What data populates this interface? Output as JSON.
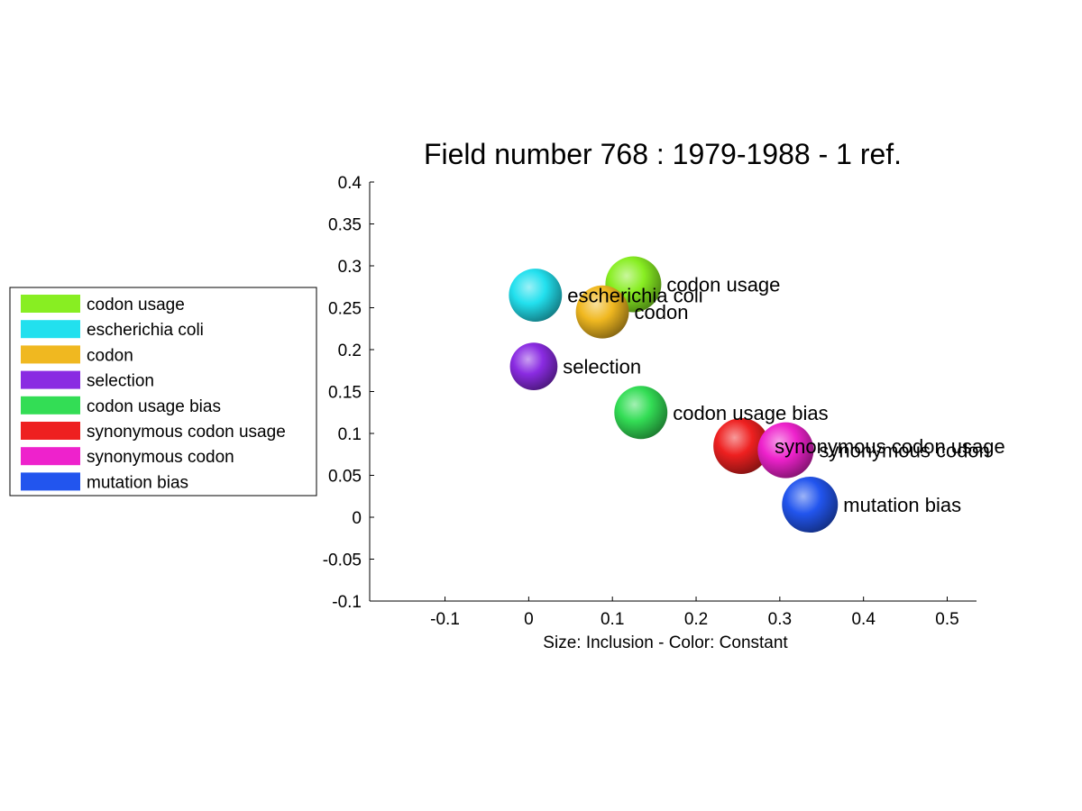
{
  "chart_data": {
    "type": "scatter",
    "title": "Field number 768 : 1979-1988  - 1 ref.",
    "xlabel": "Size: Inclusion - Color: Constant",
    "ylabel": "",
    "xlim": [
      -0.19,
      0.535
    ],
    "ylim": [
      -0.1,
      0.4
    ],
    "xticks": [
      "-0.1",
      "0",
      "0.1",
      "0.2",
      "0.3",
      "0.4",
      "0.5"
    ],
    "xtick_values": [
      -0.1,
      0,
      0.1,
      0.2,
      0.3,
      0.4,
      0.5
    ],
    "yticks": [
      "0.4",
      "0.35",
      "0.3",
      "0.25",
      "0.2",
      "0.15",
      "0.1",
      "0.05",
      "0",
      "-0.05",
      "-0.1"
    ],
    "ytick_values": [
      0.4,
      0.35,
      0.3,
      0.25,
      0.2,
      0.15,
      0.1,
      0.05,
      0,
      -0.05,
      -0.1
    ],
    "legend_position": "left",
    "grid": false,
    "points": [
      {
        "label": "codon usage",
        "x": 0.125,
        "y": 0.278,
        "size": 1.0,
        "color": "#88ee22"
      },
      {
        "label": "escherichia coli",
        "x": 0.008,
        "y": 0.265,
        "size": 0.95,
        "color": "#22e0ee"
      },
      {
        "label": "codon",
        "x": 0.088,
        "y": 0.245,
        "size": 0.95,
        "color": "#f0b820"
      },
      {
        "label": "selection",
        "x": 0.006,
        "y": 0.18,
        "size": 0.85,
        "color": "#8a2be2"
      },
      {
        "label": "codon usage bias",
        "x": 0.134,
        "y": 0.125,
        "size": 0.95,
        "color": "#33dd55"
      },
      {
        "label": "synonymous codon usage",
        "x": 0.254,
        "y": 0.085,
        "size": 1.0,
        "color": "#ee2020"
      },
      {
        "label": "synonymous codon",
        "x": 0.307,
        "y": 0.08,
        "size": 1.0,
        "color": "#ee22cc"
      },
      {
        "label": "mutation bias",
        "x": 0.336,
        "y": 0.015,
        "size": 1.0,
        "color": "#2255ee"
      }
    ]
  }
}
